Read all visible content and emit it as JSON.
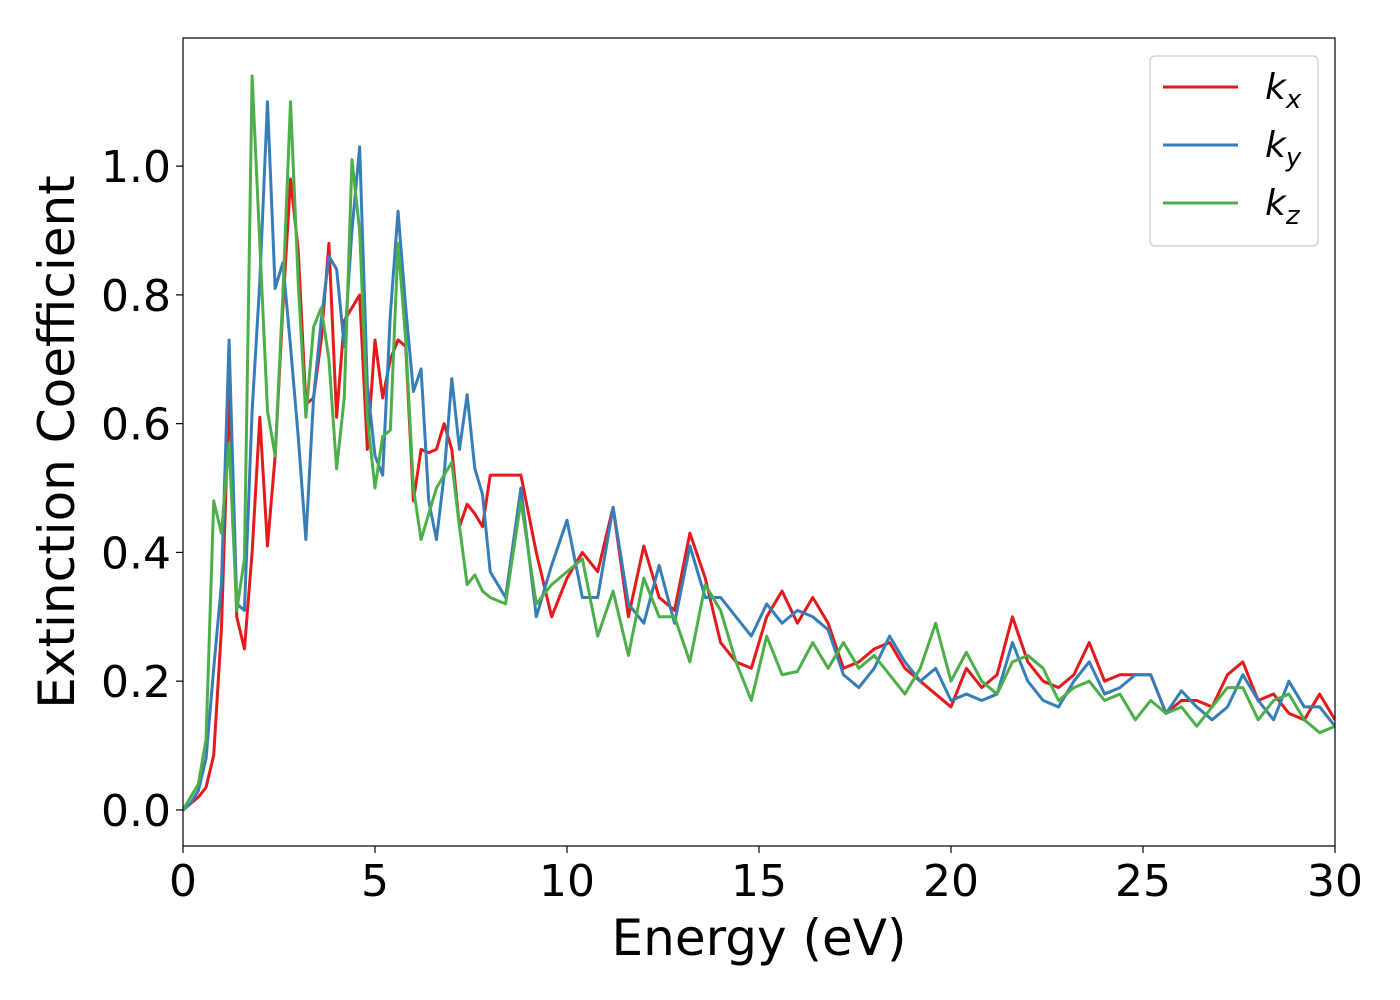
{
  "chart_data": {
    "type": "line",
    "xlabel": "Energy (eV)",
    "ylabel": "Extinction Coefficient",
    "xlim": [
      0,
      30
    ],
    "ylim": [
      -0.056,
      1.199
    ],
    "xticks": [
      0,
      5,
      10,
      15,
      20,
      25,
      30
    ],
    "yticks": [
      {
        "value": 0,
        "label": "0.0"
      },
      0.2,
      0.4,
      0.6,
      0.8,
      {
        "value": 1,
        "label": "1.0"
      }
    ],
    "legend": "upper right",
    "grid": false,
    "x": [
      0,
      0.2,
      0.4,
      0.6,
      0.8,
      1.0,
      1.2,
      1.4,
      1.6,
      1.8,
      2.0,
      2.2,
      2.4,
      2.6,
      2.8,
      3.0,
      3.2,
      3.4,
      3.6,
      3.8,
      4.0,
      4.2,
      4.4,
      4.6,
      4.8,
      5.0,
      5.2,
      5.4,
      5.6,
      5.8,
      6.0,
      6.2,
      6.4,
      6.6,
      6.8,
      7.0,
      7.2,
      7.4,
      7.6,
      7.8,
      8.0,
      8.4,
      8.8,
      9.2,
      9.6,
      10.0,
      10.4,
      10.8,
      11.2,
      11.6,
      12.0,
      12.4,
      12.8,
      13.2,
      13.6,
      14.0,
      14.4,
      14.8,
      15.2,
      15.6,
      16.0,
      16.4,
      16.8,
      17.2,
      17.6,
      18.0,
      18.4,
      18.8,
      19.2,
      19.6,
      20.0,
      20.4,
      20.8,
      21.2,
      21.6,
      22.0,
      22.4,
      22.8,
      23.2,
      23.6,
      24.0,
      24.4,
      24.8,
      25.2,
      25.6,
      26.0,
      26.4,
      26.8,
      27.2,
      27.6,
      28.0,
      28.4,
      28.8,
      29.2,
      29.6,
      30.0
    ],
    "series": [
      {
        "name": "kx",
        "color": "#e41a1c",
        "values": [
          0,
          0.01,
          0.02,
          0.035,
          0.085,
          0.28,
          0.65,
          0.3,
          0.25,
          0.4,
          0.61,
          0.41,
          0.55,
          0.78,
          0.98,
          0.87,
          0.63,
          0.64,
          0.73,
          0.88,
          0.61,
          0.76,
          0.78,
          0.8,
          0.56,
          0.73,
          0.64,
          0.7,
          0.73,
          0.72,
          0.48,
          0.56,
          0.555,
          0.56,
          0.6,
          0.56,
          0.44,
          0.475,
          0.46,
          0.44,
          0.52,
          0.52,
          0.52,
          0.4,
          0.3,
          0.36,
          0.4,
          0.37,
          0.47,
          0.3,
          0.41,
          0.33,
          0.31,
          0.43,
          0.36,
          0.26,
          0.23,
          0.22,
          0.3,
          0.34,
          0.29,
          0.33,
          0.29,
          0.22,
          0.23,
          0.25,
          0.26,
          0.22,
          0.2,
          0.18,
          0.16,
          0.22,
          0.19,
          0.21,
          0.3,
          0.23,
          0.2,
          0.19,
          0.21,
          0.26,
          0.2,
          0.21,
          0.21,
          0.21,
          0.15,
          0.17,
          0.17,
          0.16,
          0.21,
          0.23,
          0.17,
          0.18,
          0.15,
          0.14,
          0.18,
          0.14
        ]
      },
      {
        "name": "ky",
        "color": "#377eb8",
        "values": [
          0,
          0.01,
          0.03,
          0.08,
          0.22,
          0.35,
          0.73,
          0.32,
          0.31,
          0.62,
          0.82,
          1.1,
          0.81,
          0.85,
          0.72,
          0.58,
          0.42,
          0.64,
          0.76,
          0.86,
          0.84,
          0.72,
          0.9,
          1.03,
          0.66,
          0.55,
          0.52,
          0.77,
          0.93,
          0.78,
          0.65,
          0.685,
          0.48,
          0.42,
          0.52,
          0.67,
          0.56,
          0.645,
          0.53,
          0.49,
          0.37,
          0.33,
          0.5,
          0.3,
          0.38,
          0.45,
          0.33,
          0.33,
          0.47,
          0.32,
          0.29,
          0.38,
          0.29,
          0.41,
          0.33,
          0.33,
          0.3,
          0.27,
          0.32,
          0.29,
          0.31,
          0.3,
          0.28,
          0.21,
          0.19,
          0.22,
          0.27,
          0.23,
          0.2,
          0.22,
          0.17,
          0.18,
          0.17,
          0.18,
          0.26,
          0.2,
          0.17,
          0.16,
          0.2,
          0.23,
          0.18,
          0.19,
          0.21,
          0.21,
          0.15,
          0.185,
          0.16,
          0.14,
          0.16,
          0.21,
          0.17,
          0.14,
          0.2,
          0.16,
          0.16,
          0.13
        ]
      },
      {
        "name": "kz",
        "color": "#4daf4a",
        "values": [
          0,
          0.02,
          0.04,
          0.11,
          0.48,
          0.43,
          0.57,
          0.31,
          0.39,
          1.14,
          0.88,
          0.62,
          0.55,
          0.8,
          1.1,
          0.82,
          0.61,
          0.75,
          0.78,
          0.7,
          0.53,
          0.64,
          1.01,
          0.9,
          0.61,
          0.5,
          0.58,
          0.59,
          0.88,
          0.73,
          0.5,
          0.42,
          0.46,
          0.5,
          0.52,
          0.54,
          0.44,
          0.35,
          0.365,
          0.34,
          0.33,
          0.32,
          0.48,
          0.32,
          0.35,
          0.37,
          0.39,
          0.27,
          0.34,
          0.24,
          0.36,
          0.3,
          0.3,
          0.23,
          0.35,
          0.31,
          0.23,
          0.17,
          0.27,
          0.21,
          0.215,
          0.26,
          0.22,
          0.26,
          0.22,
          0.24,
          0.21,
          0.18,
          0.22,
          0.29,
          0.2,
          0.245,
          0.2,
          0.18,
          0.23,
          0.24,
          0.22,
          0.17,
          0.19,
          0.2,
          0.17,
          0.18,
          0.14,
          0.17,
          0.15,
          0.16,
          0.13,
          0.16,
          0.19,
          0.19,
          0.14,
          0.17,
          0.18,
          0.14,
          0.12,
          0.13
        ]
      }
    ]
  }
}
